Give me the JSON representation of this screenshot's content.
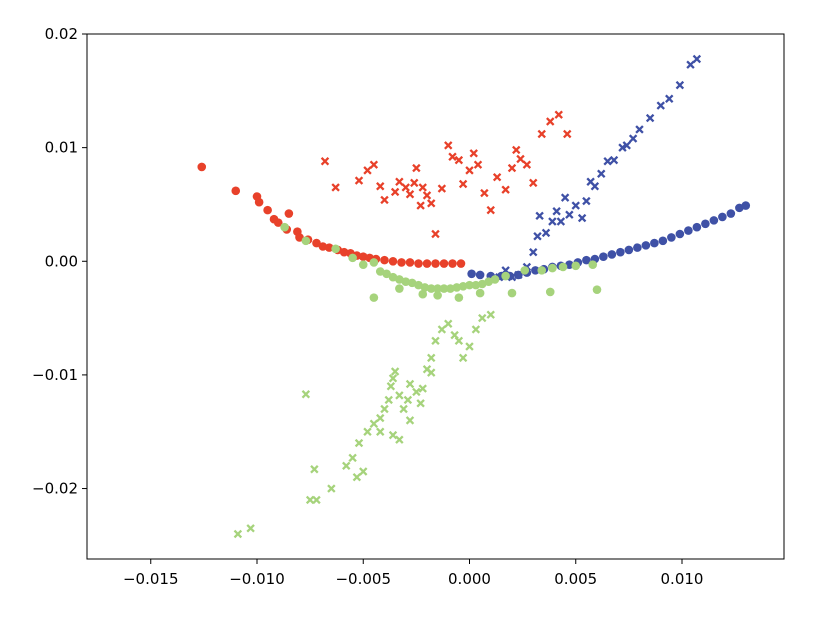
{
  "chart_data": {
    "type": "scatter",
    "title": "",
    "xlabel": "",
    "ylabel": "",
    "xlim": [
      -0.018,
      0.0148
    ],
    "ylim": [
      -0.0262,
      0.02
    ],
    "grid": false,
    "legend": "none",
    "x_ticks": [
      {
        "value": -0.015,
        "label": "−0.015"
      },
      {
        "value": -0.01,
        "label": "−0.010"
      },
      {
        "value": -0.005,
        "label": "−0.005"
      },
      {
        "value": 0.0,
        "label": "0.000"
      },
      {
        "value": 0.005,
        "label": "0.005"
      },
      {
        "value": 0.01,
        "label": "0.010"
      }
    ],
    "y_ticks": [
      {
        "value": 0.02,
        "label": "0.02"
      },
      {
        "value": 0.01,
        "label": "0.01"
      },
      {
        "value": 0.0,
        "label": "0.00"
      },
      {
        "value": -0.01,
        "label": "−0.01"
      },
      {
        "value": -0.02,
        "label": "−0.02"
      }
    ],
    "series": [
      {
        "marker": "circle",
        "color": "#e8412a",
        "points": [
          [
            -0.0126,
            0.0083
          ],
          [
            -0.011,
            0.0062
          ],
          [
            -0.01,
            0.0057
          ],
          [
            -0.0099,
            0.0052
          ],
          [
            -0.0095,
            0.0045
          ],
          [
            -0.0092,
            0.0037
          ],
          [
            -0.009,
            0.0034
          ],
          [
            -0.0086,
            0.0028
          ],
          [
            -0.0085,
            0.0042
          ],
          [
            -0.0081,
            0.0026
          ],
          [
            -0.008,
            0.0021
          ],
          [
            -0.0076,
            0.0019
          ],
          [
            -0.0072,
            0.0016
          ],
          [
            -0.0069,
            0.0013
          ],
          [
            -0.0066,
            0.0012
          ],
          [
            -0.0062,
            0.001
          ],
          [
            -0.0059,
            0.0008
          ],
          [
            -0.0056,
            0.0007
          ],
          [
            -0.0053,
            0.0005
          ],
          [
            -0.005,
            0.0004
          ],
          [
            -0.0047,
            0.0003
          ],
          [
            -0.0044,
            0.0002
          ],
          [
            -0.004,
            0.0001
          ],
          [
            -0.0036,
            0.0
          ],
          [
            -0.0032,
            -0.0001
          ],
          [
            -0.0028,
            -0.0001
          ],
          [
            -0.0024,
            -0.0002
          ],
          [
            -0.002,
            -0.0002
          ],
          [
            -0.0016,
            -0.0002
          ],
          [
            -0.0012,
            -0.0002
          ],
          [
            -0.0008,
            -0.0002
          ],
          [
            -0.0004,
            -0.0002
          ]
        ]
      },
      {
        "marker": "x",
        "color": "#e8412a",
        "points": [
          [
            -0.0068,
            0.0088
          ],
          [
            -0.0063,
            0.0065
          ],
          [
            -0.0052,
            0.0071
          ],
          [
            -0.0048,
            0.008
          ],
          [
            -0.0045,
            0.0085
          ],
          [
            -0.0042,
            0.0066
          ],
          [
            -0.004,
            0.0054
          ],
          [
            -0.0035,
            0.0061
          ],
          [
            -0.0033,
            0.007
          ],
          [
            -0.003,
            0.0065
          ],
          [
            -0.0028,
            0.0059
          ],
          [
            -0.0026,
            0.0069
          ],
          [
            -0.0025,
            0.0082
          ],
          [
            -0.0023,
            0.0049
          ],
          [
            -0.0022,
            0.0065
          ],
          [
            -0.002,
            0.0058
          ],
          [
            -0.0018,
            0.0051
          ],
          [
            -0.0016,
            0.0024
          ],
          [
            -0.0013,
            0.0064
          ],
          [
            -0.001,
            0.0102
          ],
          [
            -0.0008,
            0.0092
          ],
          [
            -0.0005,
            0.0089
          ],
          [
            -0.0003,
            0.0068
          ],
          [
            0.0,
            0.008
          ],
          [
            0.0002,
            0.0095
          ],
          [
            0.0004,
            0.0085
          ],
          [
            0.0007,
            0.006
          ],
          [
            0.001,
            0.0045
          ],
          [
            0.0013,
            0.0074
          ],
          [
            0.0017,
            0.0063
          ],
          [
            0.002,
            0.0082
          ],
          [
            0.0022,
            0.0098
          ],
          [
            0.0024,
            0.009
          ],
          [
            0.0027,
            0.0085
          ],
          [
            0.003,
            0.0069
          ],
          [
            0.0034,
            0.0112
          ],
          [
            0.0038,
            0.0123
          ],
          [
            0.0042,
            0.0129
          ],
          [
            0.0046,
            0.0112
          ]
        ]
      },
      {
        "marker": "circle",
        "color": "#3f51a6",
        "points": [
          [
            0.0001,
            -0.0011
          ],
          [
            0.0005,
            -0.0012
          ],
          [
            0.001,
            -0.0013
          ],
          [
            0.0015,
            -0.0013
          ],
          [
            0.0019,
            -0.0013
          ],
          [
            0.0023,
            -0.0012
          ],
          [
            0.0027,
            -0.001
          ],
          [
            0.0031,
            -0.0008
          ],
          [
            0.0035,
            -0.0007
          ],
          [
            0.0039,
            -0.0005
          ],
          [
            0.0043,
            -0.0004
          ],
          [
            0.0047,
            -0.0003
          ],
          [
            0.0051,
            -0.0001
          ],
          [
            0.0055,
            0.0001
          ],
          [
            0.0059,
            0.0002
          ],
          [
            0.0063,
            0.0004
          ],
          [
            0.0067,
            0.0006
          ],
          [
            0.0071,
            0.0008
          ],
          [
            0.0075,
            0.001
          ],
          [
            0.0079,
            0.0012
          ],
          [
            0.0083,
            0.0014
          ],
          [
            0.0087,
            0.0016
          ],
          [
            0.0091,
            0.0018
          ],
          [
            0.0095,
            0.0021
          ],
          [
            0.0099,
            0.0024
          ],
          [
            0.0103,
            0.0027
          ],
          [
            0.0107,
            0.003
          ],
          [
            0.0111,
            0.0033
          ],
          [
            0.0115,
            0.0036
          ],
          [
            0.0119,
            0.0039
          ],
          [
            0.0123,
            0.0042
          ],
          [
            0.0127,
            0.0047
          ],
          [
            0.013,
            0.0049
          ]
        ]
      },
      {
        "marker": "x",
        "color": "#3f51a6",
        "points": [
          [
            0.0014,
            -0.0014
          ],
          [
            0.0017,
            -0.0008
          ],
          [
            0.002,
            -0.0014
          ],
          [
            0.0023,
            -0.0012
          ],
          [
            0.0027,
            -0.0005
          ],
          [
            0.003,
            0.0008
          ],
          [
            0.0032,
            0.0022
          ],
          [
            0.0033,
            0.004
          ],
          [
            0.0036,
            0.0025
          ],
          [
            0.0039,
            0.0035
          ],
          [
            0.0041,
            0.0044
          ],
          [
            0.0043,
            0.0035
          ],
          [
            0.0045,
            0.0056
          ],
          [
            0.0047,
            0.0041
          ],
          [
            0.005,
            0.0049
          ],
          [
            0.0053,
            0.0038
          ],
          [
            0.0055,
            0.0053
          ],
          [
            0.0057,
            0.007
          ],
          [
            0.0059,
            0.0066
          ],
          [
            0.0062,
            0.0077
          ],
          [
            0.0065,
            0.0088
          ],
          [
            0.0068,
            0.0089
          ],
          [
            0.0072,
            0.01
          ],
          [
            0.0074,
            0.0102
          ],
          [
            0.0077,
            0.0108
          ],
          [
            0.008,
            0.0116
          ],
          [
            0.0085,
            0.0126
          ],
          [
            0.009,
            0.0137
          ],
          [
            0.0094,
            0.0143
          ],
          [
            0.0099,
            0.0155
          ],
          [
            0.0104,
            0.0173
          ],
          [
            0.0107,
            0.0178
          ]
        ]
      },
      {
        "marker": "circle",
        "color": "#a6d37c",
        "points": [
          [
            -0.0087,
            0.003
          ],
          [
            -0.0077,
            0.0018
          ],
          [
            -0.0063,
            0.0011
          ],
          [
            -0.0055,
            0.0003
          ],
          [
            -0.005,
            -0.0003
          ],
          [
            -0.0045,
            -0.0001
          ],
          [
            -0.0042,
            -0.0009
          ],
          [
            -0.0039,
            -0.0011
          ],
          [
            -0.0036,
            -0.0014
          ],
          [
            -0.0033,
            -0.0016
          ],
          [
            -0.003,
            -0.0018
          ],
          [
            -0.0027,
            -0.0019
          ],
          [
            -0.0024,
            -0.0021
          ],
          [
            -0.0021,
            -0.0023
          ],
          [
            -0.0018,
            -0.0024
          ],
          [
            -0.0015,
            -0.0024
          ],
          [
            -0.0012,
            -0.0024
          ],
          [
            -0.0009,
            -0.0024
          ],
          [
            -0.0006,
            -0.0023
          ],
          [
            -0.0003,
            -0.0022
          ],
          [
            0.0,
            -0.0021
          ],
          [
            0.0003,
            -0.0021
          ],
          [
            0.0006,
            -0.002
          ],
          [
            0.0009,
            -0.0018
          ],
          [
            0.0012,
            -0.0016
          ],
          [
            0.0017,
            -0.0013
          ],
          [
            0.0026,
            -0.0008
          ],
          [
            0.0034,
            -0.0008
          ],
          [
            0.0039,
            -0.0006
          ],
          [
            0.0044,
            -0.0005
          ],
          [
            0.005,
            -0.0004
          ],
          [
            0.0058,
            -0.0003
          ],
          [
            -0.0045,
            -0.0032
          ],
          [
            -0.0033,
            -0.0024
          ],
          [
            -0.0022,
            -0.0029
          ],
          [
            -0.0015,
            -0.003
          ],
          [
            -0.0005,
            -0.0032
          ],
          [
            0.0005,
            -0.0028
          ],
          [
            0.002,
            -0.0028
          ],
          [
            0.0038,
            -0.0027
          ],
          [
            0.006,
            -0.0025
          ]
        ]
      },
      {
        "marker": "x",
        "color": "#a6d37c",
        "points": [
          [
            -0.0109,
            -0.024
          ],
          [
            -0.0103,
            -0.0235
          ],
          [
            -0.0077,
            -0.0117
          ],
          [
            -0.0075,
            -0.021
          ],
          [
            -0.0072,
            -0.021
          ],
          [
            -0.0073,
            -0.0183
          ],
          [
            -0.0065,
            -0.02
          ],
          [
            -0.0058,
            -0.018
          ],
          [
            -0.0055,
            -0.0173
          ],
          [
            -0.0053,
            -0.019
          ],
          [
            -0.005,
            -0.0185
          ],
          [
            -0.0052,
            -0.016
          ],
          [
            -0.0048,
            -0.015
          ],
          [
            -0.0045,
            -0.0143
          ],
          [
            -0.0042,
            -0.0138
          ],
          [
            -0.004,
            -0.013
          ],
          [
            -0.0038,
            -0.0122
          ],
          [
            -0.0037,
            -0.011
          ],
          [
            -0.0036,
            -0.0103
          ],
          [
            -0.0035,
            -0.0097
          ],
          [
            -0.0033,
            -0.0118
          ],
          [
            -0.0031,
            -0.013
          ],
          [
            -0.0029,
            -0.0122
          ],
          [
            -0.0028,
            -0.0108
          ],
          [
            -0.0025,
            -0.0115
          ],
          [
            -0.0023,
            -0.0125
          ],
          [
            -0.0022,
            -0.0112
          ],
          [
            -0.002,
            -0.0095
          ],
          [
            -0.0018,
            -0.0085
          ],
          [
            -0.0016,
            -0.007
          ],
          [
            -0.0013,
            -0.006
          ],
          [
            -0.001,
            -0.0055
          ],
          [
            -0.0007,
            -0.0065
          ],
          [
            -0.0005,
            -0.007
          ],
          [
            -0.0003,
            -0.0085
          ],
          [
            0.0,
            -0.0075
          ],
          [
            0.0003,
            -0.006
          ],
          [
            0.0006,
            -0.005
          ],
          [
            0.001,
            -0.0047
          ],
          [
            -0.0033,
            -0.0157
          ],
          [
            -0.0036,
            -0.0153
          ],
          [
            -0.0042,
            -0.015
          ],
          [
            -0.0028,
            -0.014
          ],
          [
            -0.0018,
            -0.0098
          ]
        ]
      }
    ]
  }
}
